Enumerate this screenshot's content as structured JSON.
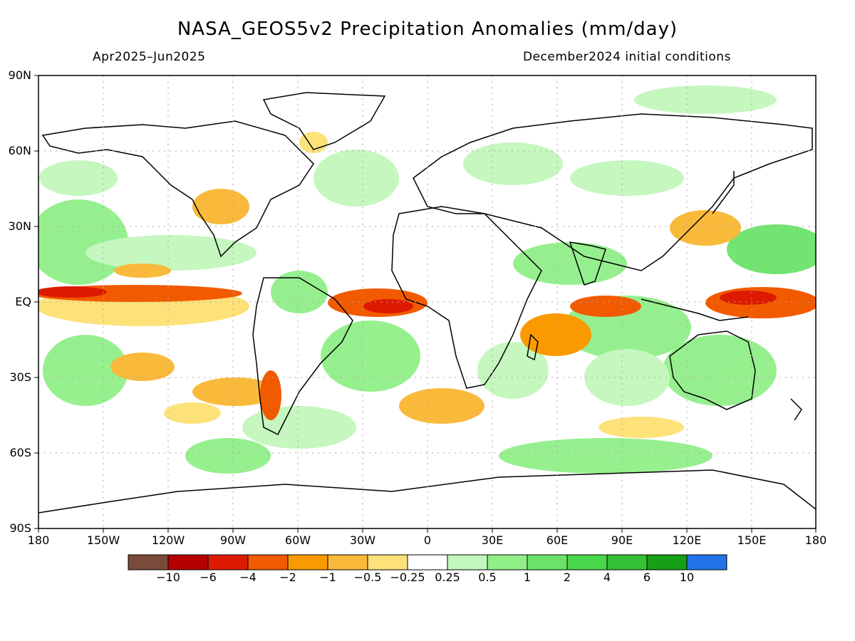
{
  "title": "NASA_GEOS5v2 Precipitation Anomalies (mm/day)",
  "subtitle_left": "Apr2025–Jun2025",
  "subtitle_right": "December2024 initial conditions",
  "lat_labels": [
    "90N",
    "60N",
    "30N",
    "EQ",
    "30S",
    "60S",
    "90S"
  ],
  "lon_labels": [
    "180",
    "150W",
    "120W",
    "90W",
    "60W",
    "30W",
    "0",
    "30E",
    "60E",
    "90E",
    "120E",
    "150E",
    "180"
  ],
  "colorbar": {
    "colors": [
      "#7a4a3a",
      "#b50000",
      "#dd1a00",
      "#f25a00",
      "#fa9a00",
      "#f9b93a",
      "#fde27a",
      "#ffffff",
      "#c2f7bc",
      "#91ef88",
      "#6be36a",
      "#4ad64a",
      "#35c135",
      "#15a015",
      "#2273e8"
    ],
    "labels": [
      "−10",
      "−6",
      "−4",
      "−2",
      "−1",
      "−0.5",
      "−0.25",
      "0.25",
      "0.5",
      "1",
      "2",
      "4",
      "6",
      "10"
    ]
  },
  "map_colors": {
    "wet_light": "#c2f7bc",
    "wet_mid": "#91ef88",
    "wet_strong": "#6be36a",
    "dry_light": "#fde27a",
    "dry_mid": "#f9b93a",
    "dry_strong": "#fa9a00",
    "dry_deep": "#f25a00",
    "dry_max": "#dd1a00",
    "coast": "#000000",
    "grid": "#aaaaaa"
  }
}
